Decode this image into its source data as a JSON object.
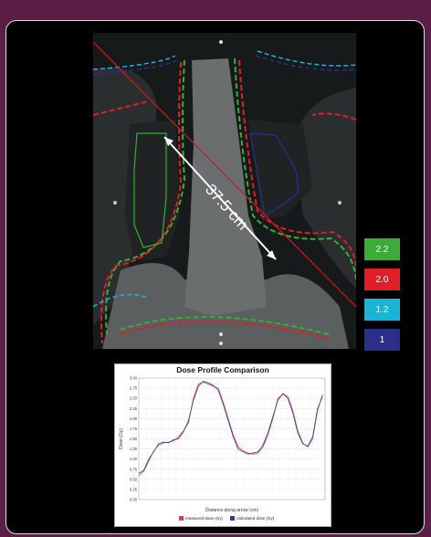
{
  "scan": {
    "ruler_label": "37.5 cm"
  },
  "dose_legend": [
    {
      "label": "2.2",
      "color": "#3cab3a"
    },
    {
      "label": "2.0",
      "color": "#e01e25"
    },
    {
      "label": "1.2",
      "color": "#1ab4d6"
    },
    {
      "label": "1",
      "color": "#2a2f8a"
    }
  ],
  "chart_data": {
    "type": "line",
    "title": "Dose Profile Comparison",
    "xlabel": "Distance along arrow (cm)",
    "ylabel": "Dose (Gy)",
    "ylim": [
      0,
      3.0
    ],
    "xlim": [
      0,
      37.5
    ],
    "y_ticks": [
      "0.00",
      "0.25",
      "0.50",
      "0.75",
      "1.00",
      "1.25",
      "1.50",
      "1.75",
      "2.00",
      "2.25",
      "2.50",
      "2.75",
      "3.00"
    ],
    "series": [
      {
        "name": "measured dose (Gy)",
        "color": "#e03c4a",
        "x": [
          0,
          1,
          2,
          3,
          4,
          5,
          6,
          7,
          8,
          9,
          10,
          11,
          12,
          13,
          14,
          15,
          16,
          17,
          18,
          19,
          20,
          21,
          22,
          23,
          24,
          25,
          26,
          27,
          28,
          29,
          30,
          31,
          32,
          33,
          34,
          35,
          36,
          37
        ],
        "y": [
          0.6,
          0.7,
          0.95,
          1.2,
          1.35,
          1.4,
          1.42,
          1.45,
          1.55,
          1.7,
          1.9,
          2.5,
          2.85,
          2.9,
          2.85,
          2.8,
          2.75,
          2.4,
          2.0,
          1.6,
          1.3,
          1.2,
          1.15,
          1.12,
          1.15,
          1.3,
          1.6,
          2.0,
          2.5,
          2.6,
          2.55,
          2.2,
          1.7,
          1.4,
          1.3,
          1.5,
          2.2,
          2.6
        ]
      },
      {
        "name": "calculated dose (Gy)",
        "color": "#2a3fa0",
        "x": [
          0,
          1,
          2,
          3,
          4,
          5,
          6,
          7,
          8,
          9,
          10,
          11,
          12,
          13,
          14,
          15,
          16,
          17,
          18,
          19,
          20,
          21,
          22,
          23,
          24,
          25,
          26,
          27,
          28,
          29,
          30,
          31,
          32,
          33,
          34,
          35,
          36,
          37
        ],
        "y": [
          0.65,
          0.72,
          1.0,
          1.18,
          1.38,
          1.42,
          1.4,
          1.48,
          1.5,
          1.68,
          1.95,
          2.45,
          2.8,
          2.92,
          2.88,
          2.82,
          2.7,
          2.35,
          1.95,
          1.55,
          1.25,
          1.18,
          1.12,
          1.15,
          1.18,
          1.35,
          1.65,
          2.05,
          2.45,
          2.62,
          2.5,
          2.15,
          1.65,
          1.38,
          1.32,
          1.55,
          2.25,
          2.55
        ]
      }
    ],
    "legend": [
      "measured dose (Gy)",
      "calculated dose (Gy)"
    ]
  }
}
